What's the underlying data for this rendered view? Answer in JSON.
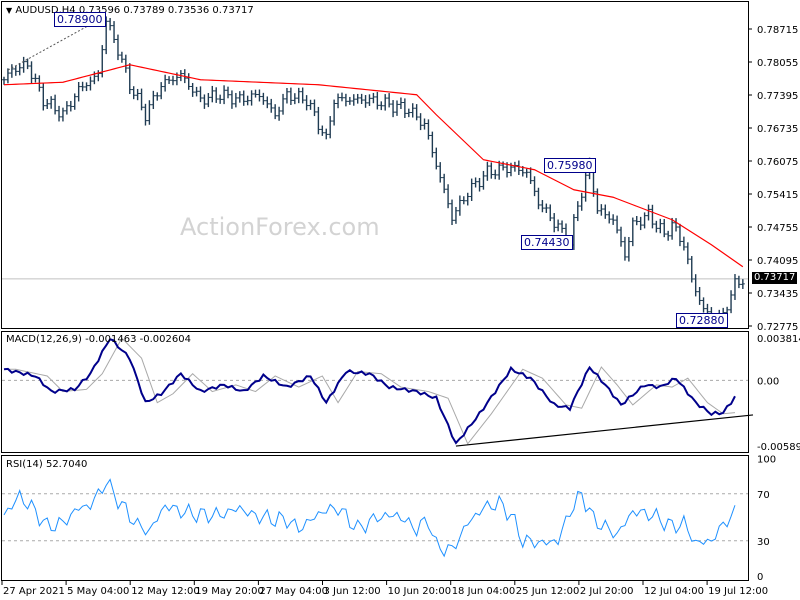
{
  "header": {
    "symbol": "AUDUSD,H4",
    "ohlc": "0.73596 0.73789 0.73536 0.73717",
    "menu_icon": "triangle-down-icon"
  },
  "watermark": "ActionForex.com",
  "colors": {
    "bars": "#1f3b52",
    "ma": "#ff0000",
    "macd": "#00008b",
    "signal": "#a9a9a9",
    "rsi": "#1e90ff",
    "annotation": "#00008b"
  },
  "chart_data": {
    "type": "ohlc",
    "bar_spacing_note_free": true,
    "price_axis": {
      "ticks": [
        "0.78715",
        "0.78055",
        "0.77395",
        "0.76735",
        "0.76075",
        "0.75415",
        "0.74755",
        "0.74095",
        "0.73435",
        "0.72775"
      ],
      "ylim": [
        0.7271,
        0.792
      ]
    },
    "current_price": "0.73717",
    "x_ticks": [
      "27 Apr 2021",
      "5 May 04:00",
      "12 May 12:00",
      "19 May 20:00",
      "27 May 04:00",
      "3 Jun 12:00",
      "10 Jun 20:00",
      "18 Jun 04:00",
      "25 Jun 12:00",
      "2 Jul 20:00",
      "12 Jul 04:00",
      "19 Jul 12:00"
    ],
    "price_path": [
      [
        0,
        0.777
      ],
      [
        2,
        0.779
      ],
      [
        6,
        0.78
      ],
      [
        10,
        0.773
      ],
      [
        15,
        0.77
      ],
      [
        19,
        0.775
      ],
      [
        24,
        0.778
      ],
      [
        26,
        0.789
      ],
      [
        29,
        0.783
      ],
      [
        32,
        0.776
      ],
      [
        36,
        0.77
      ],
      [
        40,
        0.776
      ],
      [
        45,
        0.778
      ],
      [
        50,
        0.773
      ],
      [
        55,
        0.774
      ],
      [
        60,
        0.773
      ],
      [
        65,
        0.774
      ],
      [
        69,
        0.77
      ],
      [
        72,
        0.774
      ],
      [
        77,
        0.773
      ],
      [
        82,
        0.765
      ],
      [
        84,
        0.773
      ],
      [
        88,
        0.773
      ],
      [
        93,
        0.773
      ],
      [
        98,
        0.772
      ],
      [
        103,
        0.771
      ],
      [
        107,
        0.768
      ],
      [
        110,
        0.76
      ],
      [
        114,
        0.7495
      ],
      [
        118,
        0.7545
      ],
      [
        123,
        0.7585
      ],
      [
        129,
        0.7595
      ],
      [
        133,
        0.7585
      ],
      [
        136,
        0.7525
      ],
      [
        141,
        0.7475
      ],
      [
        144,
        0.7443
      ],
      [
        146,
        0.752
      ],
      [
        149,
        0.7598
      ],
      [
        151,
        0.751
      ],
      [
        155,
        0.749
      ],
      [
        158,
        0.742
      ],
      [
        160,
        0.748
      ],
      [
        164,
        0.75
      ],
      [
        168,
        0.746
      ],
      [
        170,
        0.748
      ],
      [
        173,
        0.744
      ],
      [
        175,
        0.737
      ],
      [
        178,
        0.731
      ],
      [
        181,
        0.7288
      ],
      [
        183,
        0.73
      ],
      [
        186,
        0.736
      ],
      [
        188,
        0.7372
      ]
    ],
    "moving_average": {
      "path": [
        [
          0,
          0.776
        ],
        [
          15,
          0.7765
        ],
        [
          32,
          0.78
        ],
        [
          50,
          0.777
        ],
        [
          80,
          0.776
        ],
        [
          105,
          0.774
        ],
        [
          110,
          0.77
        ],
        [
          122,
          0.761
        ],
        [
          135,
          0.759
        ],
        [
          145,
          0.755
        ],
        [
          155,
          0.7535
        ],
        [
          170,
          0.749
        ],
        [
          180,
          0.744
        ],
        [
          188,
          0.7396
        ]
      ]
    },
    "macd": {
      "label": "MACD(12,26,9) -0.001463 -0.002604",
      "axis": [
        "0.003814",
        "0.00",
        "-0.005895"
      ],
      "ylim": [
        -0.005895,
        0.003814
      ],
      "path": [
        [
          0,
          0.001
        ],
        [
          8,
          0.0004
        ],
        [
          12,
          -0.001
        ],
        [
          18,
          -0.0008
        ],
        [
          22,
          0.0006
        ],
        [
          27,
          0.0038
        ],
        [
          32,
          0.002
        ],
        [
          36,
          -0.002
        ],
        [
          40,
          -0.0012
        ],
        [
          45,
          0.0006
        ],
        [
          50,
          -0.001
        ],
        [
          56,
          -0.0004
        ],
        [
          61,
          -0.001
        ],
        [
          66,
          0.0004
        ],
        [
          72,
          -0.0006
        ],
        [
          78,
          0.0004
        ],
        [
          82,
          -0.002
        ],
        [
          87,
          0.0008
        ],
        [
          93,
          0.0006
        ],
        [
          98,
          -0.0006
        ],
        [
          105,
          -0.001
        ],
        [
          110,
          -0.0016
        ],
        [
          115,
          -0.0057
        ],
        [
          121,
          -0.003
        ],
        [
          129,
          0.001
        ],
        [
          134,
          0.0002
        ],
        [
          140,
          -0.0022
        ],
        [
          144,
          -0.0025
        ],
        [
          149,
          0.0012
        ],
        [
          153,
          -0.0004
        ],
        [
          157,
          -0.0022
        ],
        [
          163,
          -0.0004
        ],
        [
          167,
          -0.0006
        ],
        [
          171,
          0.0002
        ],
        [
          176,
          -0.002
        ],
        [
          180,
          -0.003
        ],
        [
          183,
          -0.0029
        ],
        [
          186,
          -0.0015
        ]
      ],
      "signal_lag_bars": 3,
      "trendline": [
        [
          115,
          -0.0059
        ],
        [
          188,
          -0.0031
        ]
      ]
    },
    "rsi": {
      "label": "RSI(14) 52.7040",
      "axis": [
        "100",
        "70",
        "30",
        "0"
      ],
      "levels": [
        70,
        30
      ],
      "ylim": [
        0,
        100
      ],
      "path": [
        [
          0,
          52
        ],
        [
          4,
          68
        ],
        [
          8,
          55
        ],
        [
          11,
          42
        ],
        [
          15,
          45
        ],
        [
          19,
          58
        ],
        [
          22,
          60
        ],
        [
          26,
          80
        ],
        [
          30,
          60
        ],
        [
          34,
          43
        ],
        [
          37,
          38
        ],
        [
          41,
          60
        ],
        [
          45,
          55
        ],
        [
          50,
          52
        ],
        [
          55,
          52
        ],
        [
          60,
          58
        ],
        [
          63,
          52
        ],
        [
          69,
          48
        ],
        [
          72,
          48
        ],
        [
          75,
          40
        ],
        [
          81,
          55
        ],
        [
          85,
          58
        ],
        [
          90,
          40
        ],
        [
          95,
          50
        ],
        [
          100,
          52
        ],
        [
          105,
          40
        ],
        [
          108,
          48
        ],
        [
          110,
          25
        ],
        [
          114,
          22
        ],
        [
          118,
          45
        ],
        [
          122,
          58
        ],
        [
          126,
          62
        ],
        [
          129,
          52
        ],
        [
          132,
          30
        ],
        [
          137,
          28
        ],
        [
          141,
          30
        ],
        [
          144,
          55
        ],
        [
          147,
          70
        ],
        [
          150,
          48
        ],
        [
          156,
          35
        ],
        [
          160,
          55
        ],
        [
          165,
          52
        ],
        [
          170,
          42
        ],
        [
          173,
          45
        ],
        [
          176,
          28
        ],
        [
          180,
          30
        ],
        [
          184,
          48
        ],
        [
          186,
          53
        ]
      ]
    },
    "annotations": [
      {
        "label": "0.78900",
        "bar": 26,
        "price": 0.789
      },
      {
        "label": "0.75980",
        "bar": 149,
        "price": 0.7598
      },
      {
        "label": "0.74430",
        "bar": 144,
        "price": 0.7443
      },
      {
        "label": "0.72880",
        "bar": 181,
        "price": 0.7288
      }
    ]
  }
}
